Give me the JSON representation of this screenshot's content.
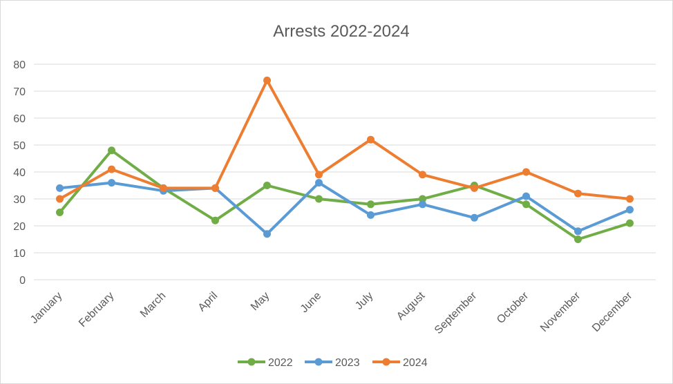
{
  "chart_data": {
    "type": "line",
    "title": "Arrests 2022-2024",
    "xlabel": "",
    "ylabel": "",
    "categories": [
      "January",
      "February",
      "March",
      "April",
      "May",
      "June",
      "July",
      "August",
      "September",
      "October",
      "November",
      "December"
    ],
    "ylim": [
      0,
      80
    ],
    "yticks": [
      0,
      10,
      20,
      30,
      40,
      50,
      60,
      70,
      80
    ],
    "grid": true,
    "legend_position": "bottom",
    "series": [
      {
        "name": "2022",
        "color": "#70ad47",
        "values": [
          25,
          48,
          34,
          22,
          35,
          30,
          28,
          30,
          35,
          28,
          15,
          21
        ]
      },
      {
        "name": "2023",
        "color": "#5b9bd5",
        "values": [
          34,
          36,
          33,
          34,
          17,
          36,
          24,
          28,
          23,
          31,
          18,
          26
        ]
      },
      {
        "name": "2024",
        "color": "#ed7d31",
        "values": [
          30,
          41,
          34,
          34,
          74,
          39,
          52,
          39,
          34,
          40,
          32,
          30
        ]
      }
    ]
  }
}
